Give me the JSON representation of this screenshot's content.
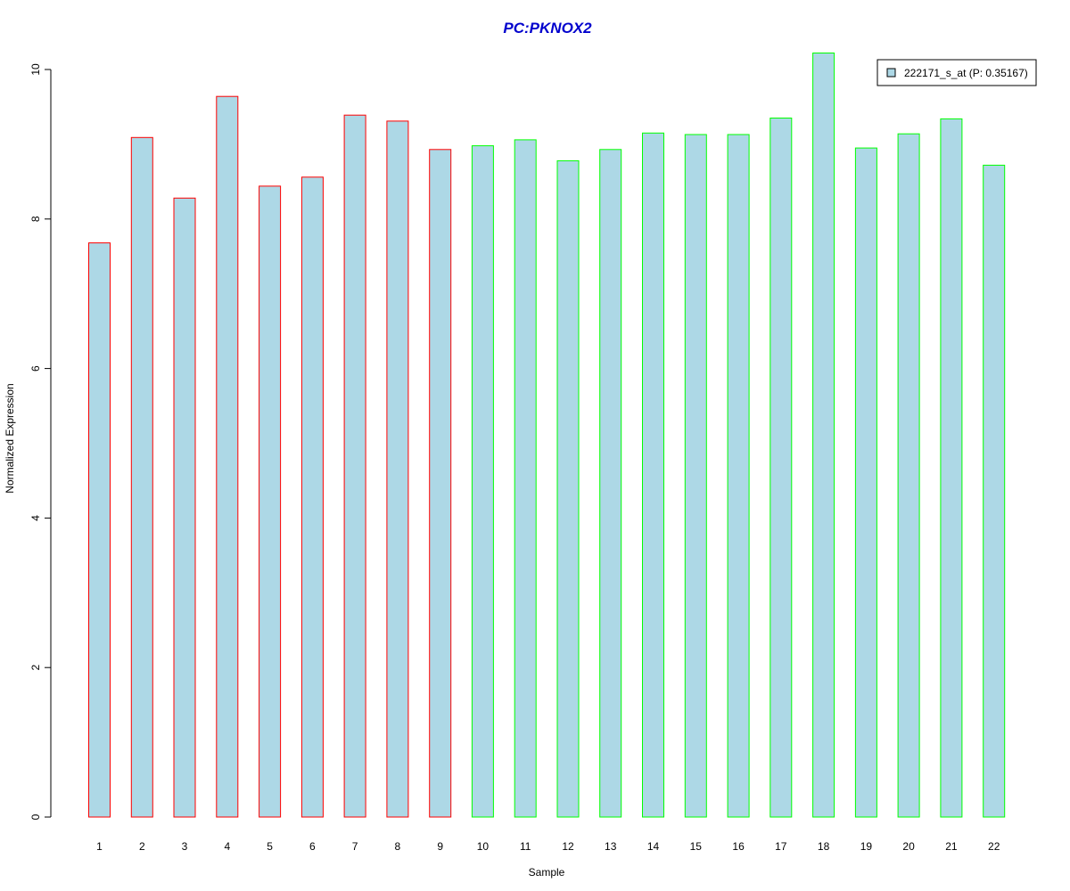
{
  "chart_data": {
    "type": "bar",
    "title": "PC:PKNOX2",
    "xlabel": "Sample",
    "ylabel": "Normalized Expression",
    "categories": [
      "1",
      "2",
      "3",
      "4",
      "5",
      "6",
      "7",
      "8",
      "9",
      "10",
      "11",
      "12",
      "13",
      "14",
      "15",
      "16",
      "17",
      "18",
      "19",
      "20",
      "21",
      "22"
    ],
    "series": [
      {
        "name": "222171_s_at (P: 0.35167)",
        "values": [
          7.68,
          9.09,
          8.28,
          9.64,
          8.44,
          8.56,
          9.39,
          9.31,
          8.93,
          8.98,
          9.06,
          8.78,
          8.93,
          9.15,
          9.13,
          9.13,
          9.35,
          10.22,
          8.95,
          9.14,
          9.34,
          8.72
        ]
      }
    ],
    "bar_border_colors": [
      "#ff0000",
      "#ff0000",
      "#ff0000",
      "#ff0000",
      "#ff0000",
      "#ff0000",
      "#ff0000",
      "#ff0000",
      "#ff0000",
      "#00ff00",
      "#00ff00",
      "#00ff00",
      "#00ff00",
      "#00ff00",
      "#00ff00",
      "#00ff00",
      "#00ff00",
      "#00ff00",
      "#00ff00",
      "#00ff00",
      "#00ff00",
      "#00ff00"
    ],
    "bar_fill_color": "#add8e6",
    "title_color": "#0000cd",
    "ylim": [
      0,
      10.22
    ],
    "yticks": [
      0,
      2,
      4,
      6,
      8,
      10
    ],
    "grid": false,
    "legend_position": "top-right"
  }
}
